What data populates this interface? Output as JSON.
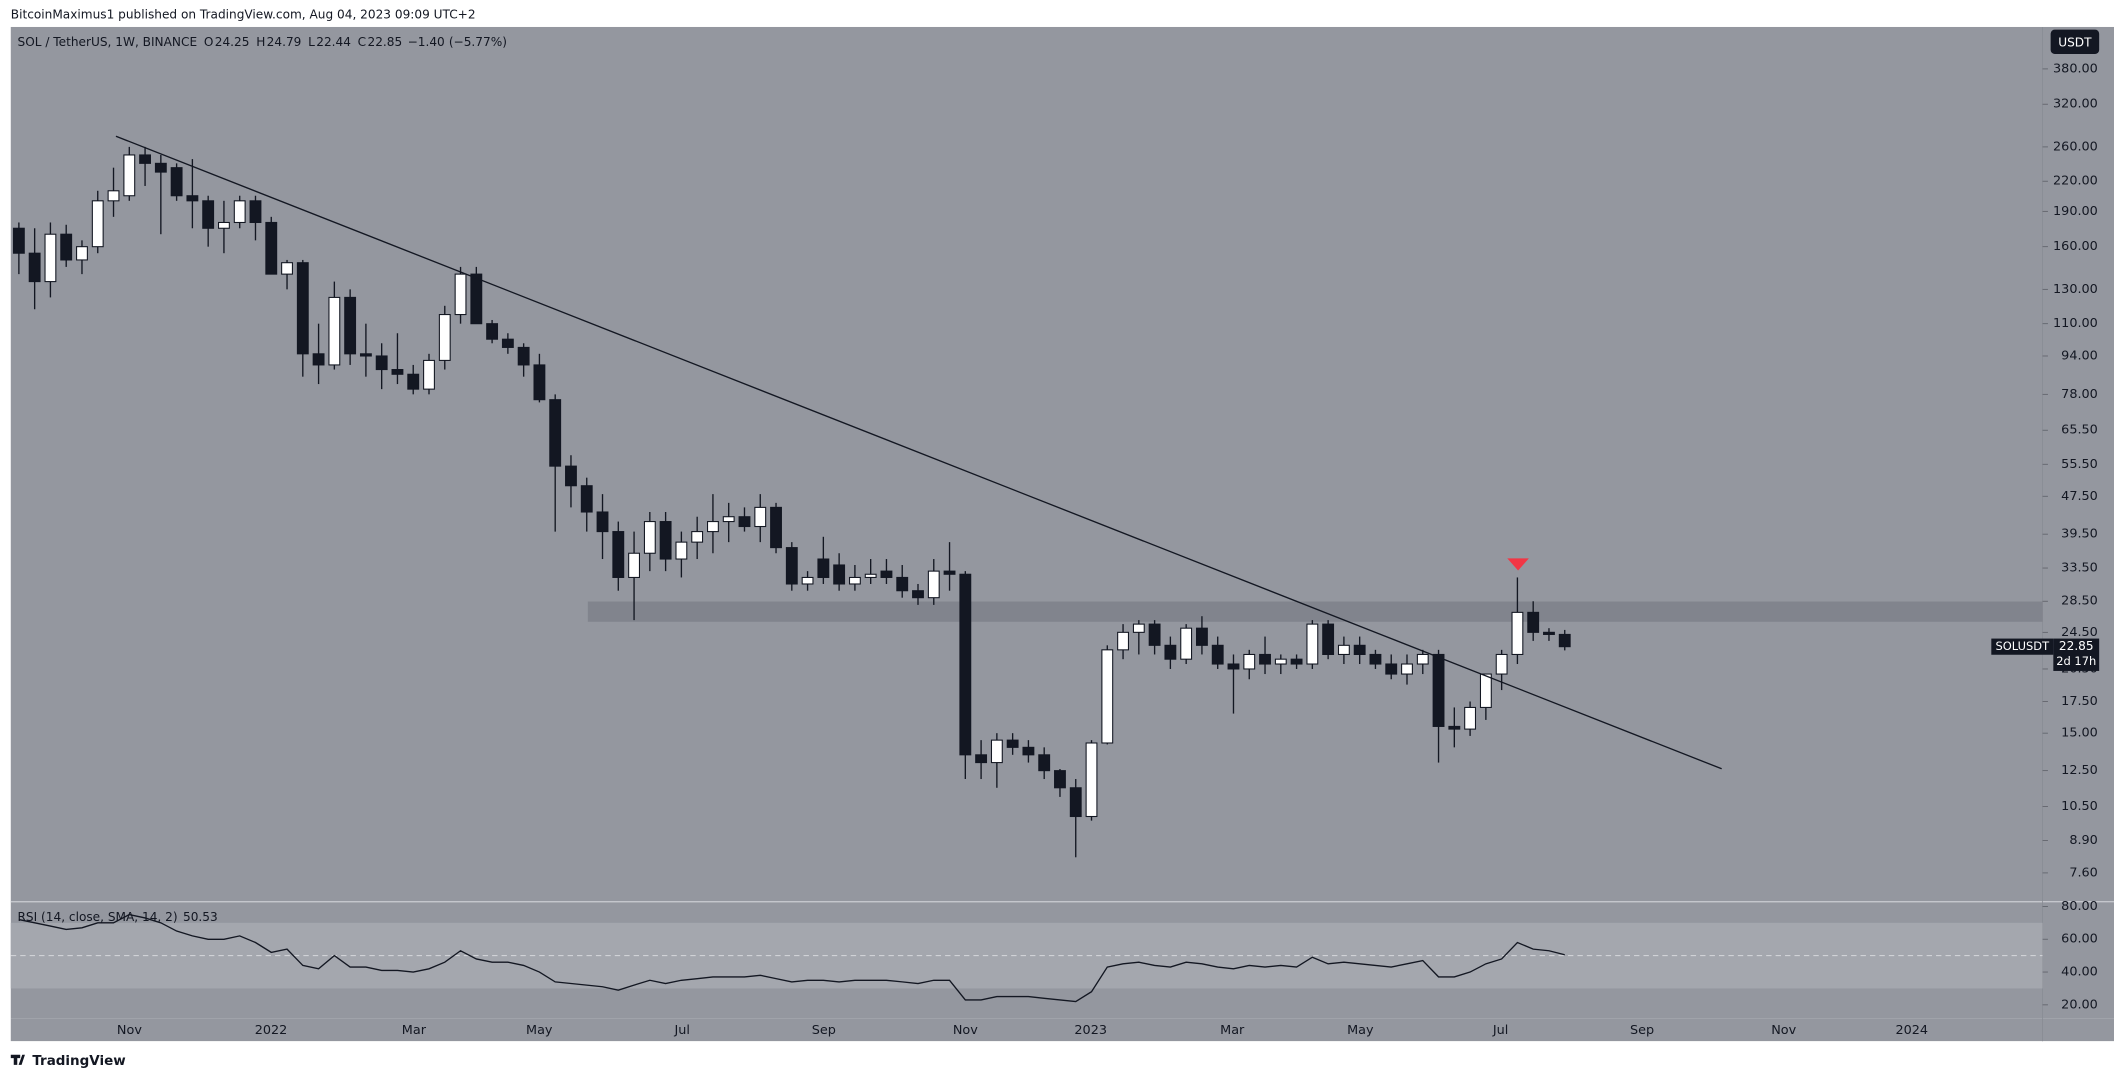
{
  "chart_data": {
    "type": "candlestick",
    "attribution": "BitcoinMaximus1 published on TradingView.com, Aug 04, 2023 09:09 UTC+2",
    "title": "SOL / TetherUS, 1W, BINANCE",
    "legend_values": [
      {
        "key": "O",
        "value": 24.25
      },
      {
        "key": "H",
        "value": 24.79
      },
      {
        "key": "L",
        "value": 22.44
      },
      {
        "key": "C",
        "value": 22.85
      }
    ],
    "change": {
      "value": -1.4,
      "label": "−1.40"
    },
    "change_pct": {
      "value": -5.77,
      "label": "(−5.77%)"
    },
    "currency": "USDT",
    "symbol": "SOLUSDT",
    "last_price": 22.85,
    "countdown": "2d 17h",
    "footer": "TradingView",
    "log_scale": true,
    "up_color": "#ffffff",
    "down_color": "#131722",
    "ylim": [
      6.63,
      466
    ],
    "yticks": [
      {
        "value": 380,
        "label": "380.00"
      },
      {
        "value": 320,
        "label": "320.00"
      },
      {
        "value": 260,
        "label": "260.00"
      },
      {
        "value": 220,
        "label": "220.00"
      },
      {
        "value": 190,
        "label": "190.00"
      },
      {
        "value": 160,
        "label": "160.00"
      },
      {
        "value": 130,
        "label": "130.00"
      },
      {
        "value": 110,
        "label": "110.00"
      },
      {
        "value": 94,
        "label": "94.00"
      },
      {
        "value": 78,
        "label": "78.00"
      },
      {
        "value": 65.5,
        "label": "65.50"
      },
      {
        "value": 55.5,
        "label": "55.50"
      },
      {
        "value": 47.5,
        "label": "47.50"
      },
      {
        "value": 39.5,
        "label": "39.50"
      },
      {
        "value": 33.5,
        "label": "33.50"
      },
      {
        "value": 28.5,
        "label": "28.50"
      },
      {
        "value": 24.5,
        "label": "24.50"
      },
      {
        "value": 20.5,
        "label": "20.50"
      },
      {
        "value": 17.5,
        "label": "17.50"
      },
      {
        "value": 15,
        "label": "15.00"
      },
      {
        "value": 12.5,
        "label": "12.50"
      },
      {
        "value": 10.5,
        "label": "10.50"
      },
      {
        "value": 8.9,
        "label": "8.90"
      },
      {
        "value": 7.6,
        "label": "7.60"
      }
    ],
    "x_labels": [
      "Nov",
      "2022",
      "Mar",
      "May",
      "Jul",
      "Sep",
      "Nov",
      "2023",
      "Mar",
      "May",
      "Jul",
      "Sep",
      "Nov",
      "2024"
    ],
    "open": [
      175,
      155,
      135,
      170,
      150,
      160,
      200,
      205,
      250,
      240,
      235,
      205,
      200,
      175,
      180,
      200,
      180,
      140,
      148,
      95,
      90,
      125,
      95,
      94,
      88,
      86,
      80,
      92,
      115,
      140,
      110,
      102,
      98,
      90,
      76,
      55,
      50,
      44,
      40,
      32,
      36,
      42,
      35,
      38,
      40,
      42,
      43,
      41,
      45,
      37,
      31,
      35,
      34,
      31,
      32,
      33,
      32,
      30,
      29,
      33,
      32.5,
      13.5,
      13,
      14.5,
      14,
      13.5,
      12.5,
      11.5,
      10,
      14.3,
      22.5,
      24.5,
      25.5,
      23,
      21.5,
      25,
      23,
      21,
      20.5,
      22,
      21,
      21.5,
      21,
      25.5,
      22,
      23,
      22,
      21,
      20,
      21,
      22,
      15.5,
      15.3,
      17,
      20,
      22,
      27,
      24.5,
      24.25
    ],
    "high": [
      180,
      175,
      180,
      178,
      165,
      210,
      235,
      260,
      260,
      250,
      240,
      245,
      205,
      200,
      205,
      205,
      185,
      150,
      150,
      110,
      135,
      130,
      110,
      100,
      105,
      90,
      95,
      120,
      145,
      145,
      112,
      105,
      100,
      95,
      78,
      58,
      52,
      48,
      42,
      40,
      44,
      44,
      40,
      43,
      48,
      46,
      45,
      48,
      46,
      38,
      33,
      39,
      36,
      34,
      35,
      35,
      34,
      31,
      35,
      38,
      33,
      14.5,
      15,
      15,
      14.5,
      14,
      12.6,
      12,
      14.5,
      23,
      25.5,
      26,
      26,
      24,
      25.5,
      26.5,
      24,
      22,
      22.5,
      24,
      22,
      22,
      26,
      26,
      24,
      24,
      22.5,
      22,
      22,
      22.5,
      22.5,
      17,
      17.5,
      20,
      22.5,
      32,
      28.5,
      25,
      24.79
    ],
    "low": [
      140,
      118,
      125,
      145,
      140,
      155,
      185,
      200,
      215,
      170,
      200,
      175,
      160,
      155,
      175,
      165,
      140,
      130,
      85,
      82,
      88,
      90,
      85,
      80,
      82,
      78,
      78,
      88,
      110,
      110,
      100,
      95,
      85,
      75,
      40,
      45,
      40,
      35,
      30,
      26,
      33,
      33,
      32,
      35,
      36,
      38,
      40,
      38,
      36,
      30,
      30,
      31,
      30,
      30,
      31,
      31,
      29,
      28,
      28,
      30,
      12,
      12,
      11.5,
      13.5,
      13,
      12,
      11,
      8.2,
      9.8,
      14.2,
      21.5,
      22,
      22,
      20.5,
      21,
      22,
      20.5,
      16.5,
      19.5,
      20,
      20,
      20.5,
      20.5,
      21.5,
      21,
      21,
      20.5,
      19.5,
      19,
      20,
      13,
      14,
      14.8,
      16,
      18.5,
      21,
      23.5,
      23.5,
      22.44
    ],
    "close": [
      155,
      135,
      170,
      150,
      160,
      200,
      210,
      250,
      240,
      230,
      205,
      200,
      175,
      180,
      200,
      180,
      140,
      148,
      95,
      90,
      125,
      95,
      94,
      88,
      86,
      80,
      92,
      115,
      140,
      110,
      102,
      98,
      90,
      76,
      55,
      50,
      44,
      40,
      32,
      36,
      42,
      35,
      38,
      40,
      42,
      43,
      41,
      45,
      37,
      31,
      32,
      32,
      31,
      32,
      32.5,
      32,
      30,
      29,
      33,
      32.5,
      13.5,
      13,
      14.5,
      14,
      13.5,
      12.5,
      11.5,
      10,
      14.3,
      22.5,
      24.5,
      25.5,
      23,
      21.5,
      25,
      23,
      21,
      20.5,
      22,
      21,
      21.5,
      21,
      25.5,
      22,
      23,
      22,
      21,
      20,
      21,
      22,
      15.5,
      15.3,
      17,
      20,
      22,
      27,
      24.5,
      24.25,
      22.85
    ],
    "rsi": {
      "title": "RSI (14, close, SMA, 14, 2)",
      "ylim": [
        11.8,
        82.5
      ],
      "band": [
        30,
        70
      ],
      "midline": 50,
      "yticks": [
        {
          "value": 80,
          "label": "80.00"
        },
        {
          "value": 60,
          "label": "60.00"
        },
        {
          "value": 40,
          "label": "40.00"
        },
        {
          "value": 20,
          "label": "20.00"
        }
      ],
      "values": [
        72,
        70,
        68,
        66,
        67,
        70,
        70,
        75,
        73,
        70,
        65,
        62,
        60,
        60,
        62,
        58,
        52,
        54,
        44,
        42,
        50,
        43,
        43,
        41,
        41,
        40,
        42,
        46,
        53,
        48,
        46,
        46,
        44,
        40,
        34,
        33,
        32,
        31,
        29,
        32,
        35,
        33,
        35,
        36,
        37,
        37,
        37,
        38,
        36,
        34,
        35,
        35,
        34,
        35,
        35,
        35,
        34,
        33,
        35,
        35,
        23,
        23,
        25,
        25,
        25,
        24,
        23,
        22,
        28,
        43,
        45,
        46,
        44,
        43,
        46,
        45,
        43,
        42,
        44,
        43,
        44,
        43,
        49,
        45,
        46,
        45,
        44,
        43,
        45,
        47,
        37,
        37,
        40,
        45,
        48,
        58,
        54,
        53,
        50.53
      ]
    }
  }
}
